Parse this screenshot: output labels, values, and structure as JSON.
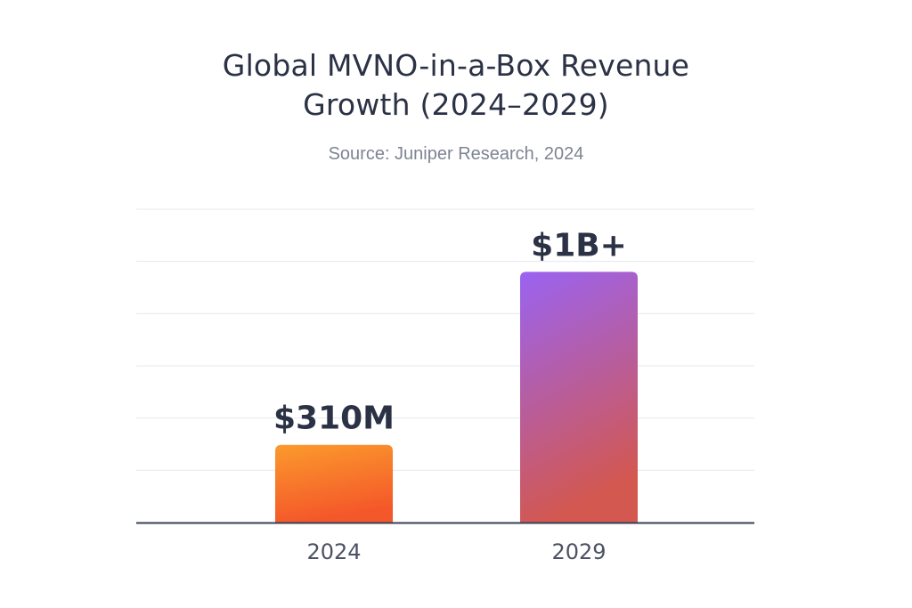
{
  "chart_data": {
    "type": "bar",
    "title_lines": [
      "Global MVNO-in-a-Box Revenue",
      "Growth (2024–2029)"
    ],
    "subtitle": "Source: Juniper Research, 2024",
    "categories": [
      "2024",
      "2029"
    ],
    "values": [
      310,
      1000
    ],
    "value_unit": "$M",
    "data_labels": [
      "$310M",
      "$1B+"
    ],
    "ylim": [
      0,
      1250
    ],
    "grid": true,
    "xlabel": "",
    "ylabel": "",
    "bar_colors": [
      {
        "top": "#fb9a2c",
        "bottom": "#f4572a"
      },
      {
        "top": "#9a63f2",
        "bottom": "#d3584f"
      }
    ],
    "grid_color": "#e6e8ec",
    "axis_color": "#364154",
    "label_color": "#2b3245",
    "tick_color": "#4b5263"
  }
}
